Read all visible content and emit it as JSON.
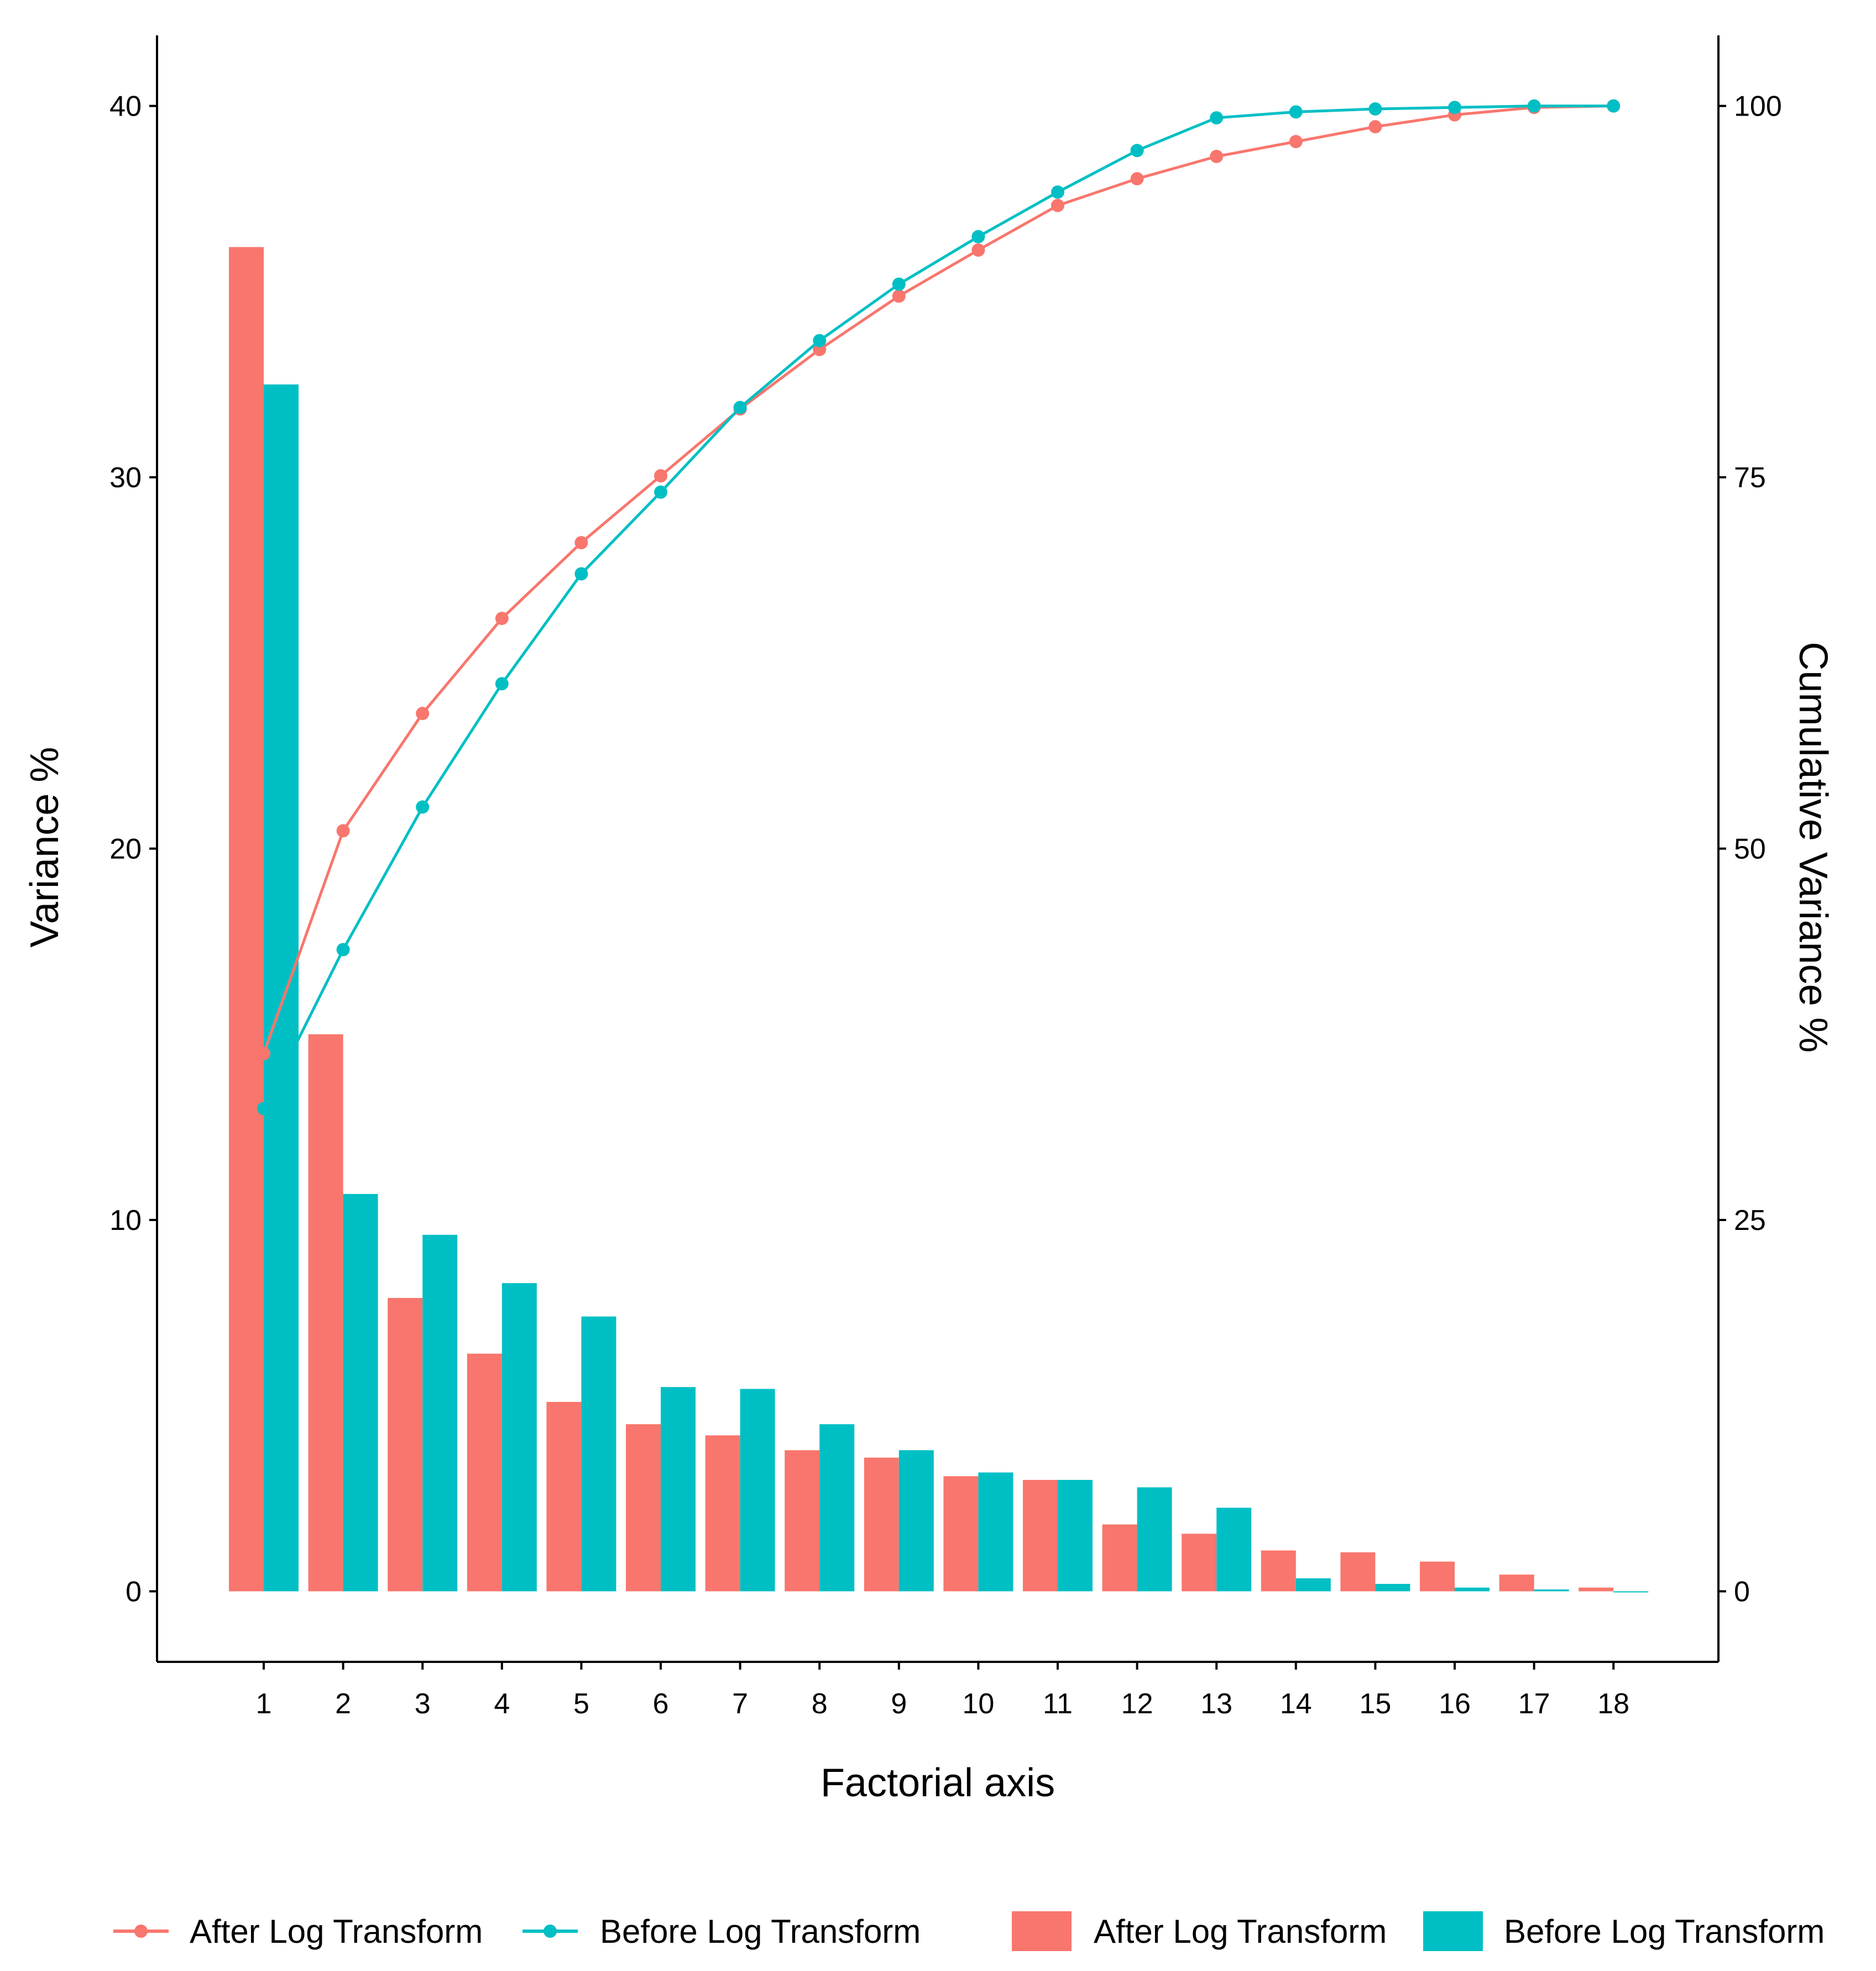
{
  "chart_data": {
    "type": "bar",
    "xlabel": "Factorial axis",
    "ylabel": "Variance %",
    "y2label": "Cumulative Variance %",
    "x": [
      1,
      2,
      3,
      4,
      5,
      6,
      7,
      8,
      9,
      10,
      11,
      12,
      13,
      14,
      15,
      16,
      17,
      18
    ],
    "ylim": [
      -1.9,
      41.9
    ],
    "y2lim": [
      -4.75,
      104.75
    ],
    "yticks": [
      0,
      10,
      20,
      30,
      40
    ],
    "y2ticks": [
      0,
      25,
      50,
      75,
      100
    ],
    "grid": false,
    "legend_position": "bottom",
    "bar_series": [
      {
        "name": "After Log Transform",
        "color": "#F8766D",
        "values": [
          36.2,
          15.0,
          7.9,
          6.4,
          5.1,
          4.5,
          4.2,
          3.8,
          3.6,
          3.1,
          3.0,
          1.8,
          1.55,
          1.1,
          1.05,
          0.8,
          0.45,
          0.1
        ]
      },
      {
        "name": "Before Log Transform",
        "color": "#00BFC4",
        "values": [
          32.5,
          10.7,
          9.6,
          8.3,
          7.4,
          5.5,
          5.45,
          4.5,
          3.8,
          3.2,
          3.0,
          2.8,
          2.25,
          0.35,
          0.2,
          0.1,
          0.05,
          0.0
        ]
      }
    ],
    "line_series": [
      {
        "name": "After Log Transform",
        "color": "#F8766D",
        "values": [
          36.2,
          51.2,
          59.1,
          65.5,
          70.6,
          75.1,
          79.6,
          83.6,
          87.2,
          90.3,
          93.3,
          95.1,
          96.6,
          97.6,
          98.6,
          99.4,
          99.9,
          100.0
        ]
      },
      {
        "name": "Before Log Transform",
        "color": "#00BFC4",
        "values": [
          32.5,
          43.2,
          52.8,
          61.1,
          68.5,
          74.0,
          79.7,
          84.2,
          88.0,
          91.2,
          94.2,
          97.0,
          99.2,
          99.6,
          99.8,
          99.9,
          100.0,
          100.0
        ]
      }
    ]
  },
  "legend": {
    "line_items": [
      "After Log Transform",
      "Before Log Transform"
    ],
    "bar_items": [
      "After Log Transform",
      "Before Log Transform"
    ]
  }
}
